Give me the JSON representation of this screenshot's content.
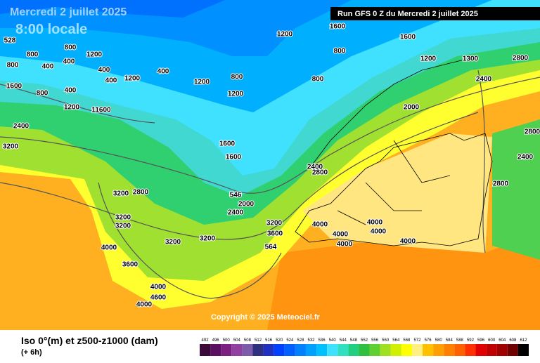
{
  "header": {
    "date": "Mercredi 2 juillet 2025",
    "time": "8:00 locale",
    "run": "Run GFS 0 Z du Mercredi 2 juillet 2025"
  },
  "copyright": "Copyright © 2025 Meteociel.fr",
  "footer": {
    "title": "Iso 0°(m) et z500-z1000 (dam)",
    "step": "(+ 6h)"
  },
  "colorbar": {
    "values": [
      492,
      496,
      500,
      504,
      508,
      512,
      516,
      520,
      524,
      528,
      532,
      536,
      540,
      544,
      548,
      552,
      556,
      560,
      564,
      568,
      572,
      576,
      580,
      584,
      588,
      592,
      596,
      600,
      604,
      608,
      612
    ],
    "colors": [
      "#3a0a3a",
      "#5a1060",
      "#7a2080",
      "#9040a0",
      "#7c5ca8",
      "#303080",
      "#2030c0",
      "#0040ff",
      "#0060ff",
      "#0080ff",
      "#00a0ff",
      "#00c0ff",
      "#40e0ff",
      "#30e0c0",
      "#20d080",
      "#30c040",
      "#60d030",
      "#a0e020",
      "#d0f000",
      "#ffff00",
      "#fff080",
      "#ffc000",
      "#ffa000",
      "#ff8000",
      "#ff6000",
      "#ff3000",
      "#e00000",
      "#c00000",
      "#a00000",
      "#700000",
      "#000000"
    ]
  },
  "map_labels": [
    528,
    800,
    400,
    800,
    800,
    1200,
    400,
    400,
    400,
    400,
    800,
    1600,
    1200,
    11600,
    2400,
    3200,
    3200,
    2800,
    3200,
    3200,
    3200,
    3200,
    4000,
    3600,
    4000,
    4000,
    4600,
    2400,
    2000,
    546,
    1600,
    1600,
    800,
    1200,
    1200,
    400,
    1200,
    1200,
    1600,
    1600,
    800,
    800,
    1200,
    1300,
    2400,
    2000,
    2800,
    2800,
    2400,
    2800,
    2400,
    2800,
    3200,
    3600,
    564,
    4000,
    4000,
    4000,
    4000,
    4000,
    4000
  ]
}
